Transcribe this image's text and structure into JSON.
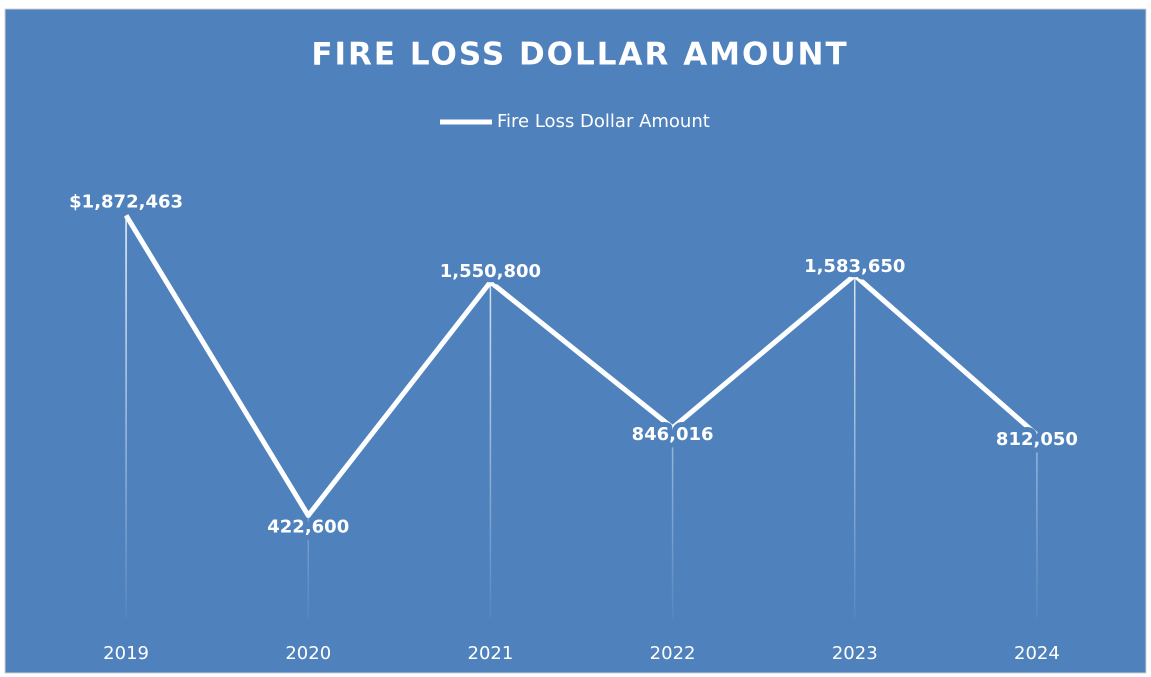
{
  "chart_data": {
    "type": "line",
    "title": "FIRE LOSS DOLLAR AMOUNT",
    "categories": [
      "2019",
      "2020",
      "2021",
      "2022",
      "2023",
      "2024"
    ],
    "series": [
      {
        "name": "Fire Loss Dollar Amount",
        "color": "#ffffff",
        "values": [
          1872463,
          422600,
          1550800,
          846016,
          1583650,
          812050
        ],
        "value_labels": [
          "$1,872,463",
          "422,600",
          "1,550,800",
          "846,016",
          "1,583,650",
          "812,050"
        ]
      }
    ],
    "ylim": [
      0,
      2000000
    ],
    "legend": "top",
    "background": "#4f81bd"
  }
}
